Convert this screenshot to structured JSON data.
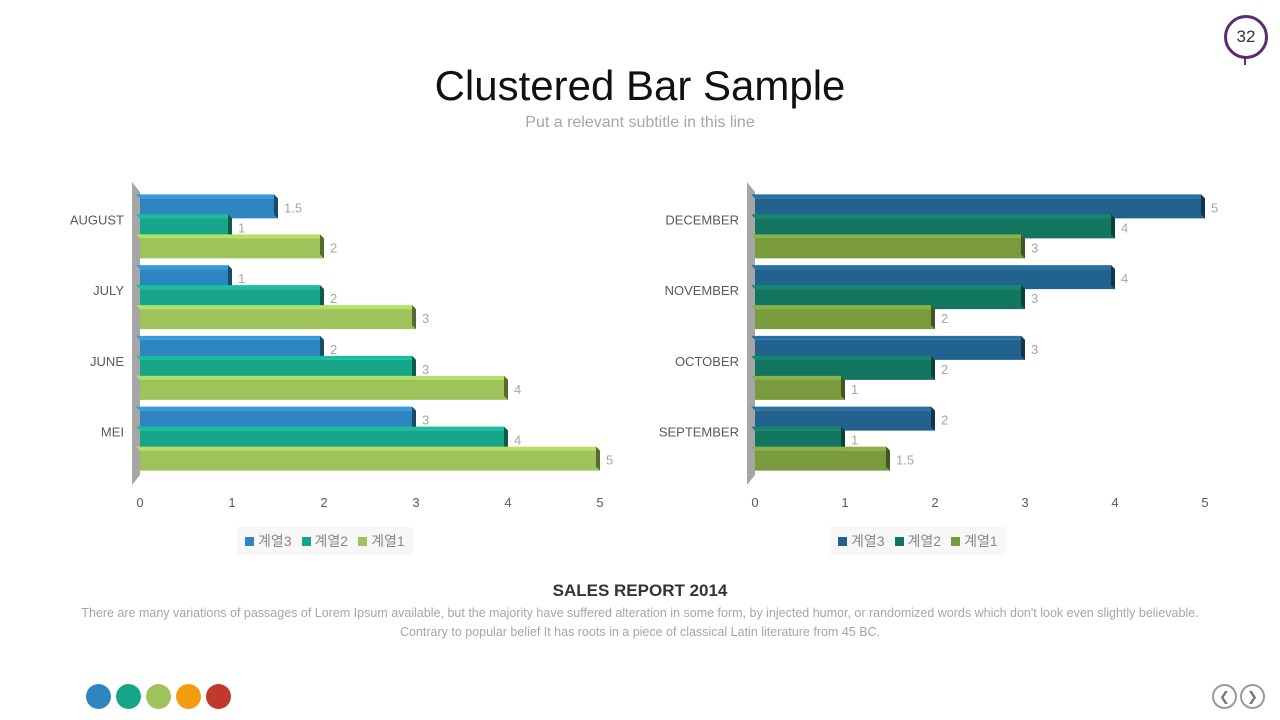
{
  "page_number": "32",
  "title": "Clustered Bar Sample",
  "subtitle": "Put a relevant subtitle in this line",
  "colors": {
    "left_series": [
      "#2e86c1",
      "#17a589",
      "#9dc35a"
    ],
    "right_series": [
      "#22628f",
      "#127560",
      "#7a9a3e"
    ],
    "dots": [
      "#2e86c1",
      "#17a589",
      "#9dc35a",
      "#f39c12",
      "#c0392b"
    ]
  },
  "chart_data": [
    {
      "type": "bar",
      "orientation": "horizontal",
      "categories": [
        "MEI",
        "JUNE",
        "JULY",
        "AUGUST"
      ],
      "series": [
        {
          "name": "계열3",
          "values": [
            3,
            2,
            1,
            1.5
          ]
        },
        {
          "name": "계열2",
          "values": [
            4,
            3,
            2,
            1
          ]
        },
        {
          "name": "계열1",
          "values": [
            5,
            4,
            3,
            2
          ]
        }
      ],
      "x_ticks": [
        "0",
        "1",
        "2",
        "3",
        "4",
        "5"
      ],
      "xlim": [
        0,
        5
      ],
      "legend": "bottom",
      "grid": false
    },
    {
      "type": "bar",
      "orientation": "horizontal",
      "categories": [
        "SEPTEMBER",
        "OCTOBER",
        "NOVEMBER",
        "DECEMBER"
      ],
      "series": [
        {
          "name": "계열3",
          "values": [
            2,
            3,
            4,
            5
          ]
        },
        {
          "name": "계열2",
          "values": [
            1,
            2,
            3,
            4
          ]
        },
        {
          "name": "계열1",
          "values": [
            1.5,
            1,
            2,
            3
          ]
        }
      ],
      "x_ticks": [
        "0",
        "1",
        "2",
        "3",
        "4",
        "5"
      ],
      "xlim": [
        0,
        5
      ],
      "legend": "bottom",
      "grid": false
    }
  ],
  "report": {
    "title": "SALES REPORT 2014",
    "body": "There are many variations of passages of Lorem Ipsum available, but the majority have suffered alteration in some form, by injected humor, or randomized words which don't look even slightly believable. Contrary to popular belief It has roots in a piece of classical Latin literature from 45 BC."
  },
  "nav": {
    "prev_icon": "chevron-left-icon",
    "next_icon": "chevron-right-icon",
    "prev_glyph": "❮",
    "next_glyph": "❯"
  }
}
